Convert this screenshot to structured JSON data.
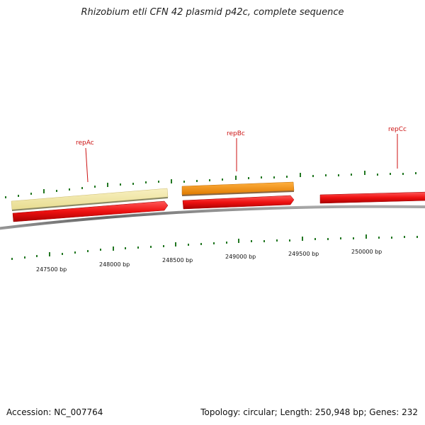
{
  "title": "Rhizobium etli CFN 42 plasmid p42c, complete sequence",
  "footer": {
    "accession_label": "Accession:",
    "accession": "NC_007764",
    "topology_label": "Topology:",
    "topology": "circular",
    "length_label": "Length:",
    "length": "250,948 bp",
    "genes_label": "Genes:",
    "genes": "232"
  },
  "map": {
    "tick_labels": [
      "247500 bp",
      "248000 bp",
      "248500 bp",
      "249000 bp",
      "249500 bp",
      "250000 bp"
    ],
    "genes": [
      {
        "name": "repAc",
        "strand": "forward",
        "category": "yellow"
      },
      {
        "name": "repBc",
        "strand": "forward",
        "category": "orange"
      },
      {
        "name": "repCc",
        "strand": "forward",
        "category": "red"
      }
    ],
    "colors": {
      "backbone": "#777777",
      "ticks": "#227722",
      "gene_label": "#cc1111",
      "cds_red": "#ee1111",
      "gene_yellow": "#f0e6a0",
      "gene_orange": "#f5900a"
    }
  }
}
